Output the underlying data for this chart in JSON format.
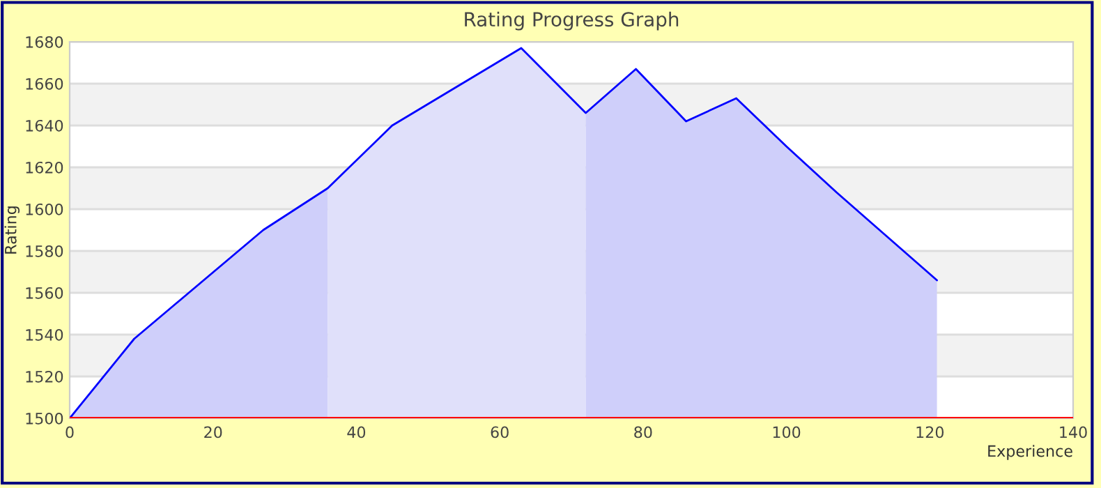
{
  "chart_data": {
    "type": "area",
    "title": "Rating Progress Graph",
    "xlabel": "Experience",
    "ylabel": "Rating",
    "series": [
      {
        "color": "#cfcffa",
        "x": [
          0,
          9,
          27,
          36
        ],
        "values": [
          1500,
          1538,
          1590,
          1610
        ]
      },
      {
        "color": "#e0e0fa",
        "x": [
          36,
          45,
          63,
          72
        ],
        "values": [
          1610,
          1640,
          1677,
          1646
        ]
      },
      {
        "color": "#cfcffa",
        "x": [
          72,
          79,
          86,
          93,
          100,
          107,
          114,
          121
        ],
        "values": [
          1646,
          1667,
          1642,
          1653,
          1630,
          1608,
          1587,
          1566
        ]
      },
      {
        "type": "line",
        "color": "#0000ff",
        "x": [
          0,
          9,
          27,
          36,
          45,
          63,
          72,
          79,
          86,
          93,
          100,
          107,
          114,
          121
        ],
        "values": [
          1500,
          1538,
          1590,
          1610,
          1640,
          1677,
          1646,
          1667,
          1642,
          1653,
          1630,
          1608,
          1587,
          1566
        ]
      }
    ],
    "xlim": [
      0,
      140
    ],
    "xticks": [
      0,
      20,
      40,
      60,
      80,
      100,
      120,
      140
    ],
    "ylim": [
      1500,
      1680
    ],
    "yticks": [
      1500,
      1520,
      1540,
      1560,
      1580,
      1600,
      1620,
      1640,
      1660,
      1680
    ],
    "grid": "y",
    "legend": false,
    "marker": "none",
    "line_style": "solid",
    "ref_lines": [
      {
        "axis": "y",
        "value": 1500,
        "color": "#ff0000"
      }
    ],
    "bands": [
      {
        "axis": "y",
        "from": 1520,
        "to": 1540,
        "color": "#f2f2f2"
      },
      {
        "axis": "y",
        "from": 1560,
        "to": 1580,
        "color": "#f2f2f2"
      },
      {
        "axis": "y",
        "from": 1600,
        "to": 1620,
        "color": "#f2f2f2"
      },
      {
        "axis": "y",
        "from": 1640,
        "to": 1660,
        "color": "#f2f2f2"
      }
    ]
  }
}
